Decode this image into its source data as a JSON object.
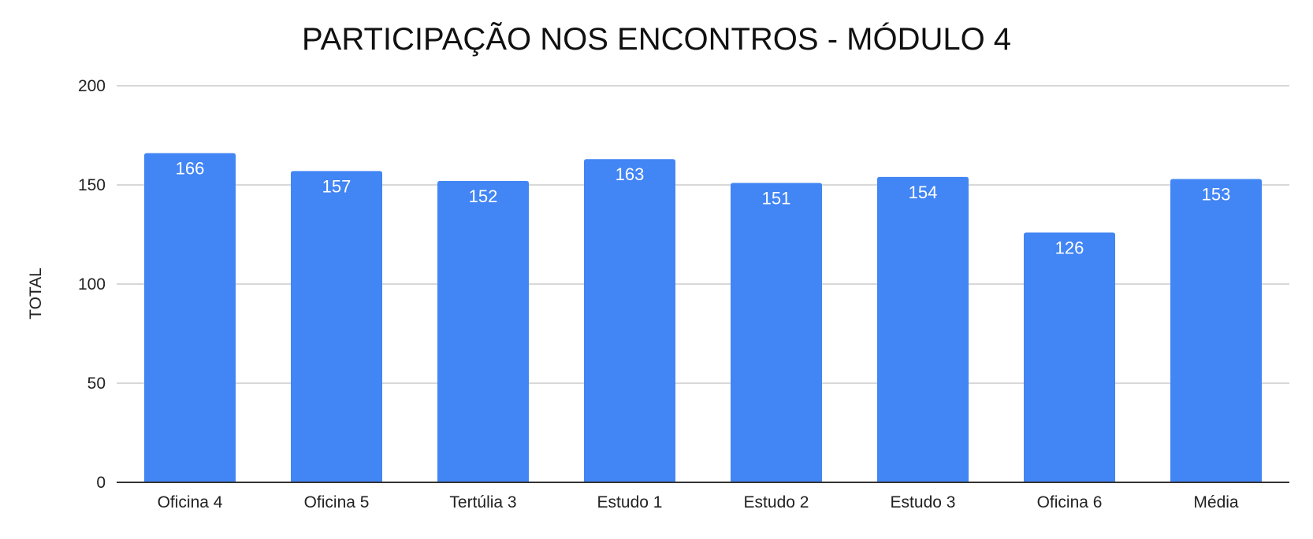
{
  "chart_data": {
    "type": "bar",
    "title": "PARTICIPAÇÃO NOS ENCONTROS - MÓDULO 4",
    "xlabel": "",
    "ylabel": "TOTAL",
    "categories": [
      "Oficina 4",
      "Oficina 5",
      "Tertúlia 3",
      "Estudo 1",
      "Estudo 2",
      "Estudo 3",
      "Oficina 6",
      "Média"
    ],
    "values": [
      166,
      157,
      152,
      163,
      151,
      154,
      126,
      153
    ],
    "ylim": [
      0,
      200
    ],
    "yticks": [
      0,
      50,
      100,
      150,
      200
    ],
    "grid": true,
    "legend": "none",
    "data_labels": true,
    "colors": {
      "bar": "#4285f4",
      "data_label": "#ffffff",
      "grid": "#cccccc",
      "axis": "#333333",
      "text": "#222222"
    }
  }
}
